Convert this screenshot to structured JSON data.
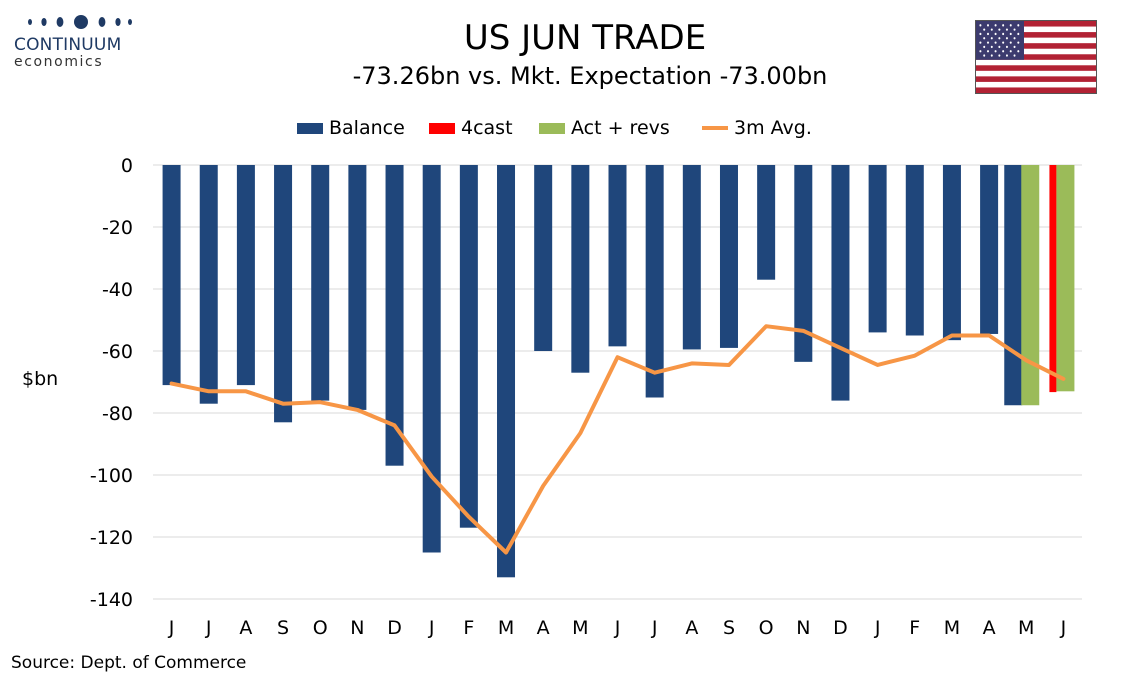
{
  "logo": {
    "name": "CONTINUUM",
    "sub": "economics"
  },
  "colors": {
    "balance": "#1f467b",
    "forecast": "#ff0000",
    "act_revs": "#9bbb59",
    "avg": "#f79646",
    "grid": "#d9d9d9"
  },
  "chart_data": {
    "type": "bar",
    "title": "US JUN TRADE",
    "subtitle": "-73.26bn vs. Mkt. Expectation -73.00bn",
    "ylabel": "$bn",
    "xlabel": "",
    "ylim": [
      -140,
      0
    ],
    "yticks": [
      0,
      -20,
      -40,
      -60,
      -80,
      -100,
      -120,
      -140
    ],
    "categories": [
      "J",
      "J",
      "A",
      "S",
      "O",
      "N",
      "D",
      "J",
      "F",
      "M",
      "A",
      "M",
      "J",
      "J",
      "A",
      "S",
      "O",
      "N",
      "D",
      "J",
      "F",
      "M",
      "A",
      "M",
      "J"
    ],
    "legend_position": "top",
    "grid": true,
    "series": [
      {
        "name": "Balance",
        "kind": "bar",
        "values": [
          -71,
          -77,
          -71,
          -83,
          -76,
          -79,
          -97,
          -125,
          -117,
          -133,
          -60,
          -67,
          -58.5,
          -75,
          -59.5,
          -59,
          -37,
          -63.5,
          -76,
          -54,
          -55,
          -56.5,
          -54.5,
          -77.5,
          null
        ]
      },
      {
        "name": "4cast",
        "kind": "bar",
        "values": [
          null,
          null,
          null,
          null,
          null,
          null,
          null,
          null,
          null,
          null,
          null,
          null,
          null,
          null,
          null,
          null,
          null,
          null,
          null,
          null,
          null,
          null,
          null,
          null,
          -73.26
        ]
      },
      {
        "name": "Act + revs",
        "kind": "bar",
        "values": [
          null,
          null,
          null,
          null,
          null,
          null,
          null,
          null,
          null,
          null,
          null,
          null,
          null,
          null,
          null,
          null,
          null,
          null,
          null,
          null,
          null,
          null,
          null,
          -77.5,
          -73
        ]
      },
      {
        "name": "3m Avg.",
        "kind": "line",
        "values": [
          -70.5,
          -73,
          -73,
          -77,
          -76.5,
          -79,
          -84,
          -100.5,
          -113.5,
          -125,
          -103.5,
          -86.5,
          -62,
          -67,
          -64,
          -64.5,
          -52,
          -53.5,
          -59,
          -64.5,
          -61.5,
          -55,
          -55,
          -63,
          -69
        ]
      }
    ]
  },
  "source": "Source: Dept. of Commerce"
}
